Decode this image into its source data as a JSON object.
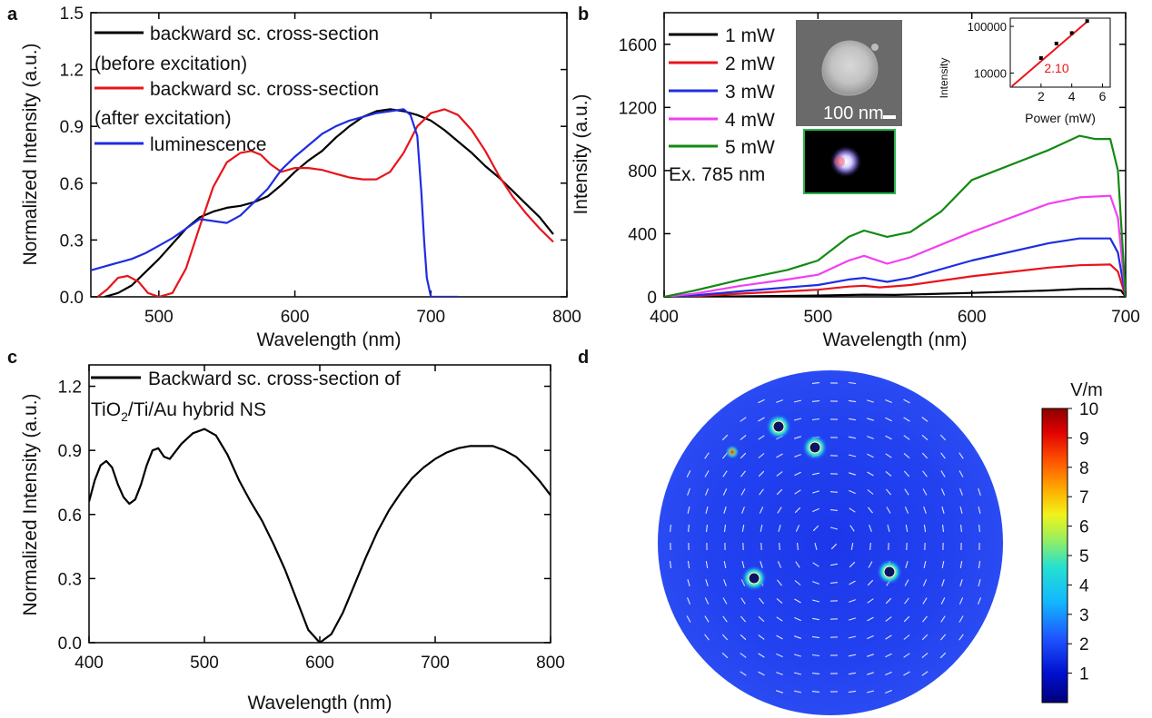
{
  "panels": {
    "a": {
      "letter": "a"
    },
    "b": {
      "letter": "b"
    },
    "c": {
      "letter": "c"
    },
    "d": {
      "letter": "d"
    }
  },
  "chart_data": [
    {
      "id": "a",
      "type": "line",
      "xlabel": "Wavelength (nm)",
      "ylabel": "Normalized Intensity (a.u.)",
      "xlim": [
        450,
        800
      ],
      "ylim": [
        0,
        1.5
      ],
      "xticks": [
        500,
        600,
        700,
        800
      ],
      "yticks": [
        0.0,
        0.3,
        0.6,
        0.9,
        1.2,
        1.5
      ],
      "ytick_labels": [
        "0.0",
        "0.3",
        "0.6",
        "0.9",
        "1.2",
        "1.5"
      ],
      "legend": {
        "placement": "top-left",
        "entries": [
          {
            "line1": "backward sc. cross-section",
            "line2": "(before excitation)",
            "color": "#000000"
          },
          {
            "line1": "backward sc. cross-section",
            "line2": "(after excitation)",
            "color": "#e8141b"
          },
          {
            "line1": "luminescence",
            "line2": "",
            "color": "#1f2de0"
          }
        ]
      },
      "series": [
        {
          "color": "#000000",
          "x": [
            460,
            470,
            480,
            490,
            500,
            510,
            520,
            530,
            540,
            550,
            560,
            570,
            580,
            590,
            600,
            610,
            620,
            630,
            640,
            650,
            660,
            670,
            680,
            690,
            700,
            710,
            720,
            730,
            740,
            750,
            760,
            770,
            780,
            790
          ],
          "y": [
            0.0,
            0.02,
            0.06,
            0.13,
            0.2,
            0.28,
            0.36,
            0.42,
            0.45,
            0.47,
            0.48,
            0.5,
            0.53,
            0.59,
            0.66,
            0.72,
            0.77,
            0.84,
            0.9,
            0.95,
            0.98,
            0.99,
            0.98,
            0.96,
            0.93,
            0.88,
            0.82,
            0.76,
            0.69,
            0.63,
            0.56,
            0.49,
            0.42,
            0.33
          ]
        },
        {
          "color": "#e8141b",
          "x": [
            455,
            462,
            470,
            477,
            485,
            492,
            500,
            510,
            520,
            530,
            540,
            550,
            560,
            568,
            575,
            582,
            590,
            600,
            610,
            620,
            630,
            640,
            650,
            660,
            670,
            680,
            690,
            700,
            710,
            720,
            730,
            740,
            750,
            760,
            770,
            780,
            790
          ],
          "y": [
            0.0,
            0.04,
            0.1,
            0.11,
            0.08,
            0.02,
            0.0,
            0.02,
            0.15,
            0.37,
            0.58,
            0.71,
            0.76,
            0.77,
            0.75,
            0.7,
            0.66,
            0.68,
            0.68,
            0.67,
            0.65,
            0.63,
            0.62,
            0.62,
            0.66,
            0.76,
            0.9,
            0.97,
            0.99,
            0.96,
            0.88,
            0.77,
            0.64,
            0.53,
            0.44,
            0.36,
            0.29
          ]
        },
        {
          "color": "#1f2de0",
          "x": [
            450,
            460,
            470,
            480,
            490,
            500,
            510,
            520,
            530,
            540,
            550,
            560,
            570,
            580,
            590,
            600,
            610,
            620,
            630,
            640,
            650,
            660,
            670,
            680,
            685,
            690,
            693,
            695,
            697,
            700,
            720
          ],
          "y": [
            0.14,
            0.16,
            0.18,
            0.2,
            0.23,
            0.27,
            0.31,
            0.36,
            0.41,
            0.4,
            0.39,
            0.43,
            0.5,
            0.57,
            0.67,
            0.74,
            0.8,
            0.86,
            0.9,
            0.93,
            0.95,
            0.97,
            0.98,
            0.99,
            0.96,
            0.85,
            0.55,
            0.3,
            0.1,
            0.0,
            0.0
          ]
        }
      ]
    },
    {
      "id": "b",
      "type": "line",
      "xlabel": "Wavelength (nm)",
      "ylabel": "Intensity (a.u.)",
      "xlim": [
        400,
        700
      ],
      "ylim": [
        0,
        1800
      ],
      "xticks": [
        400,
        500,
        600,
        700
      ],
      "yticks": [
        0,
        400,
        800,
        1200,
        1600
      ],
      "legend": {
        "placement": "top-left",
        "entries": [
          {
            "label": "1 mW",
            "color": "#000000"
          },
          {
            "label": "2 mW",
            "color": "#e8141b"
          },
          {
            "label": "3 mW",
            "color": "#1f2de0"
          },
          {
            "label": "4 mW",
            "color": "#f23ef2"
          },
          {
            "label": "5 mW",
            "color": "#138a13"
          }
        ],
        "note": "Ex. 785 nm"
      },
      "series": [
        {
          "color": "#000000",
          "x": [
            400,
            450,
            500,
            530,
            550,
            600,
            650,
            670,
            690,
            697,
            700
          ],
          "y": [
            0,
            3,
            8,
            14,
            12,
            25,
            40,
            50,
            52,
            40,
            0
          ]
        },
        {
          "color": "#e8141b",
          "x": [
            400,
            420,
            450,
            480,
            500,
            520,
            530,
            540,
            560,
            600,
            650,
            670,
            690,
            695,
            700
          ],
          "y": [
            0,
            5,
            20,
            35,
            45,
            65,
            70,
            60,
            75,
            130,
            185,
            200,
            205,
            160,
            0
          ]
        },
        {
          "color": "#1f2de0",
          "x": [
            400,
            420,
            450,
            480,
            500,
            520,
            530,
            545,
            560,
            600,
            650,
            670,
            690,
            695,
            700
          ],
          "y": [
            0,
            10,
            35,
            60,
            75,
            110,
            120,
            95,
            120,
            230,
            340,
            370,
            370,
            280,
            0
          ]
        },
        {
          "color": "#f23ef2",
          "x": [
            400,
            420,
            450,
            480,
            500,
            520,
            530,
            545,
            560,
            600,
            650,
            670,
            690,
            695,
            700
          ],
          "y": [
            0,
            20,
            70,
            110,
            140,
            230,
            260,
            210,
            250,
            410,
            590,
            630,
            640,
            500,
            0
          ]
        },
        {
          "color": "#138a13",
          "x": [
            400,
            420,
            450,
            480,
            500,
            520,
            530,
            545,
            560,
            580,
            600,
            650,
            670,
            680,
            690,
            695,
            700
          ],
          "y": [
            0,
            40,
            110,
            170,
            230,
            380,
            420,
            380,
            410,
            540,
            740,
            930,
            1020,
            1000,
            1000,
            800,
            0
          ]
        }
      ],
      "insets": {
        "scale_bar_label": "100 nm",
        "power_plot": {
          "type": "scatter",
          "xlabel": "Power (mW)",
          "ylabel": "Intensity",
          "yscale": "log",
          "xlim": [
            0,
            6.5
          ],
          "ylim": [
            5000,
            150000
          ],
          "xticks": [
            2,
            4,
            6
          ],
          "yticks": [
            10000,
            100000
          ],
          "ytick_labels": [
            "10000",
            "100000"
          ],
          "points": [
            {
              "x": 2,
              "y": 21000
            },
            {
              "x": 3,
              "y": 43000
            },
            {
              "x": 4,
              "y": 72000
            },
            {
              "x": 5,
              "y": 130000
            }
          ],
          "fit_line": {
            "x": [
              0.1,
              5.1
            ],
            "y": [
              5200,
              135000
            ],
            "color": "#e8141b"
          },
          "slope_label": "2.10"
        }
      }
    },
    {
      "id": "c",
      "type": "line",
      "xlabel": "Wavelength (nm)",
      "ylabel": "Normalized Intensity (a.u.)",
      "xlim": [
        400,
        800
      ],
      "ylim": [
        0,
        1.3
      ],
      "xticks": [
        400,
        500,
        600,
        700,
        800
      ],
      "yticks": [
        0.0,
        0.3,
        0.6,
        0.9,
        1.2
      ],
      "ytick_labels": [
        "0.0",
        "0.3",
        "0.6",
        "0.9",
        "1.2"
      ],
      "legend": {
        "placement": "top-left",
        "line1": "Backward sc. cross-section of",
        "line2_parts": [
          "TiO",
          "2",
          "/Ti/Au hybrid NS"
        ],
        "color": "#000000"
      },
      "series": [
        {
          "color": "#000000",
          "x": [
            400,
            405,
            410,
            415,
            420,
            425,
            430,
            435,
            440,
            445,
            450,
            455,
            460,
            465,
            470,
            480,
            490,
            500,
            510,
            520,
            530,
            540,
            550,
            560,
            570,
            580,
            590,
            600,
            610,
            620,
            630,
            640,
            650,
            660,
            670,
            680,
            690,
            700,
            710,
            720,
            730,
            740,
            750,
            760,
            770,
            780,
            790,
            800
          ],
          "y": [
            0.66,
            0.76,
            0.83,
            0.85,
            0.82,
            0.74,
            0.68,
            0.65,
            0.67,
            0.74,
            0.83,
            0.9,
            0.91,
            0.87,
            0.86,
            0.93,
            0.98,
            1.0,
            0.97,
            0.88,
            0.76,
            0.66,
            0.57,
            0.46,
            0.34,
            0.2,
            0.06,
            0.0,
            0.04,
            0.14,
            0.27,
            0.4,
            0.52,
            0.62,
            0.7,
            0.77,
            0.82,
            0.86,
            0.89,
            0.91,
            0.92,
            0.92,
            0.92,
            0.9,
            0.87,
            0.82,
            0.76,
            0.69
          ]
        }
      ]
    },
    {
      "id": "d",
      "type": "heatmap",
      "colorbar": {
        "unit": "V/m",
        "min": 0,
        "max": 10,
        "ticks": [
          1,
          2,
          3,
          4,
          5,
          6,
          7,
          8,
          9,
          10
        ]
      }
    }
  ]
}
